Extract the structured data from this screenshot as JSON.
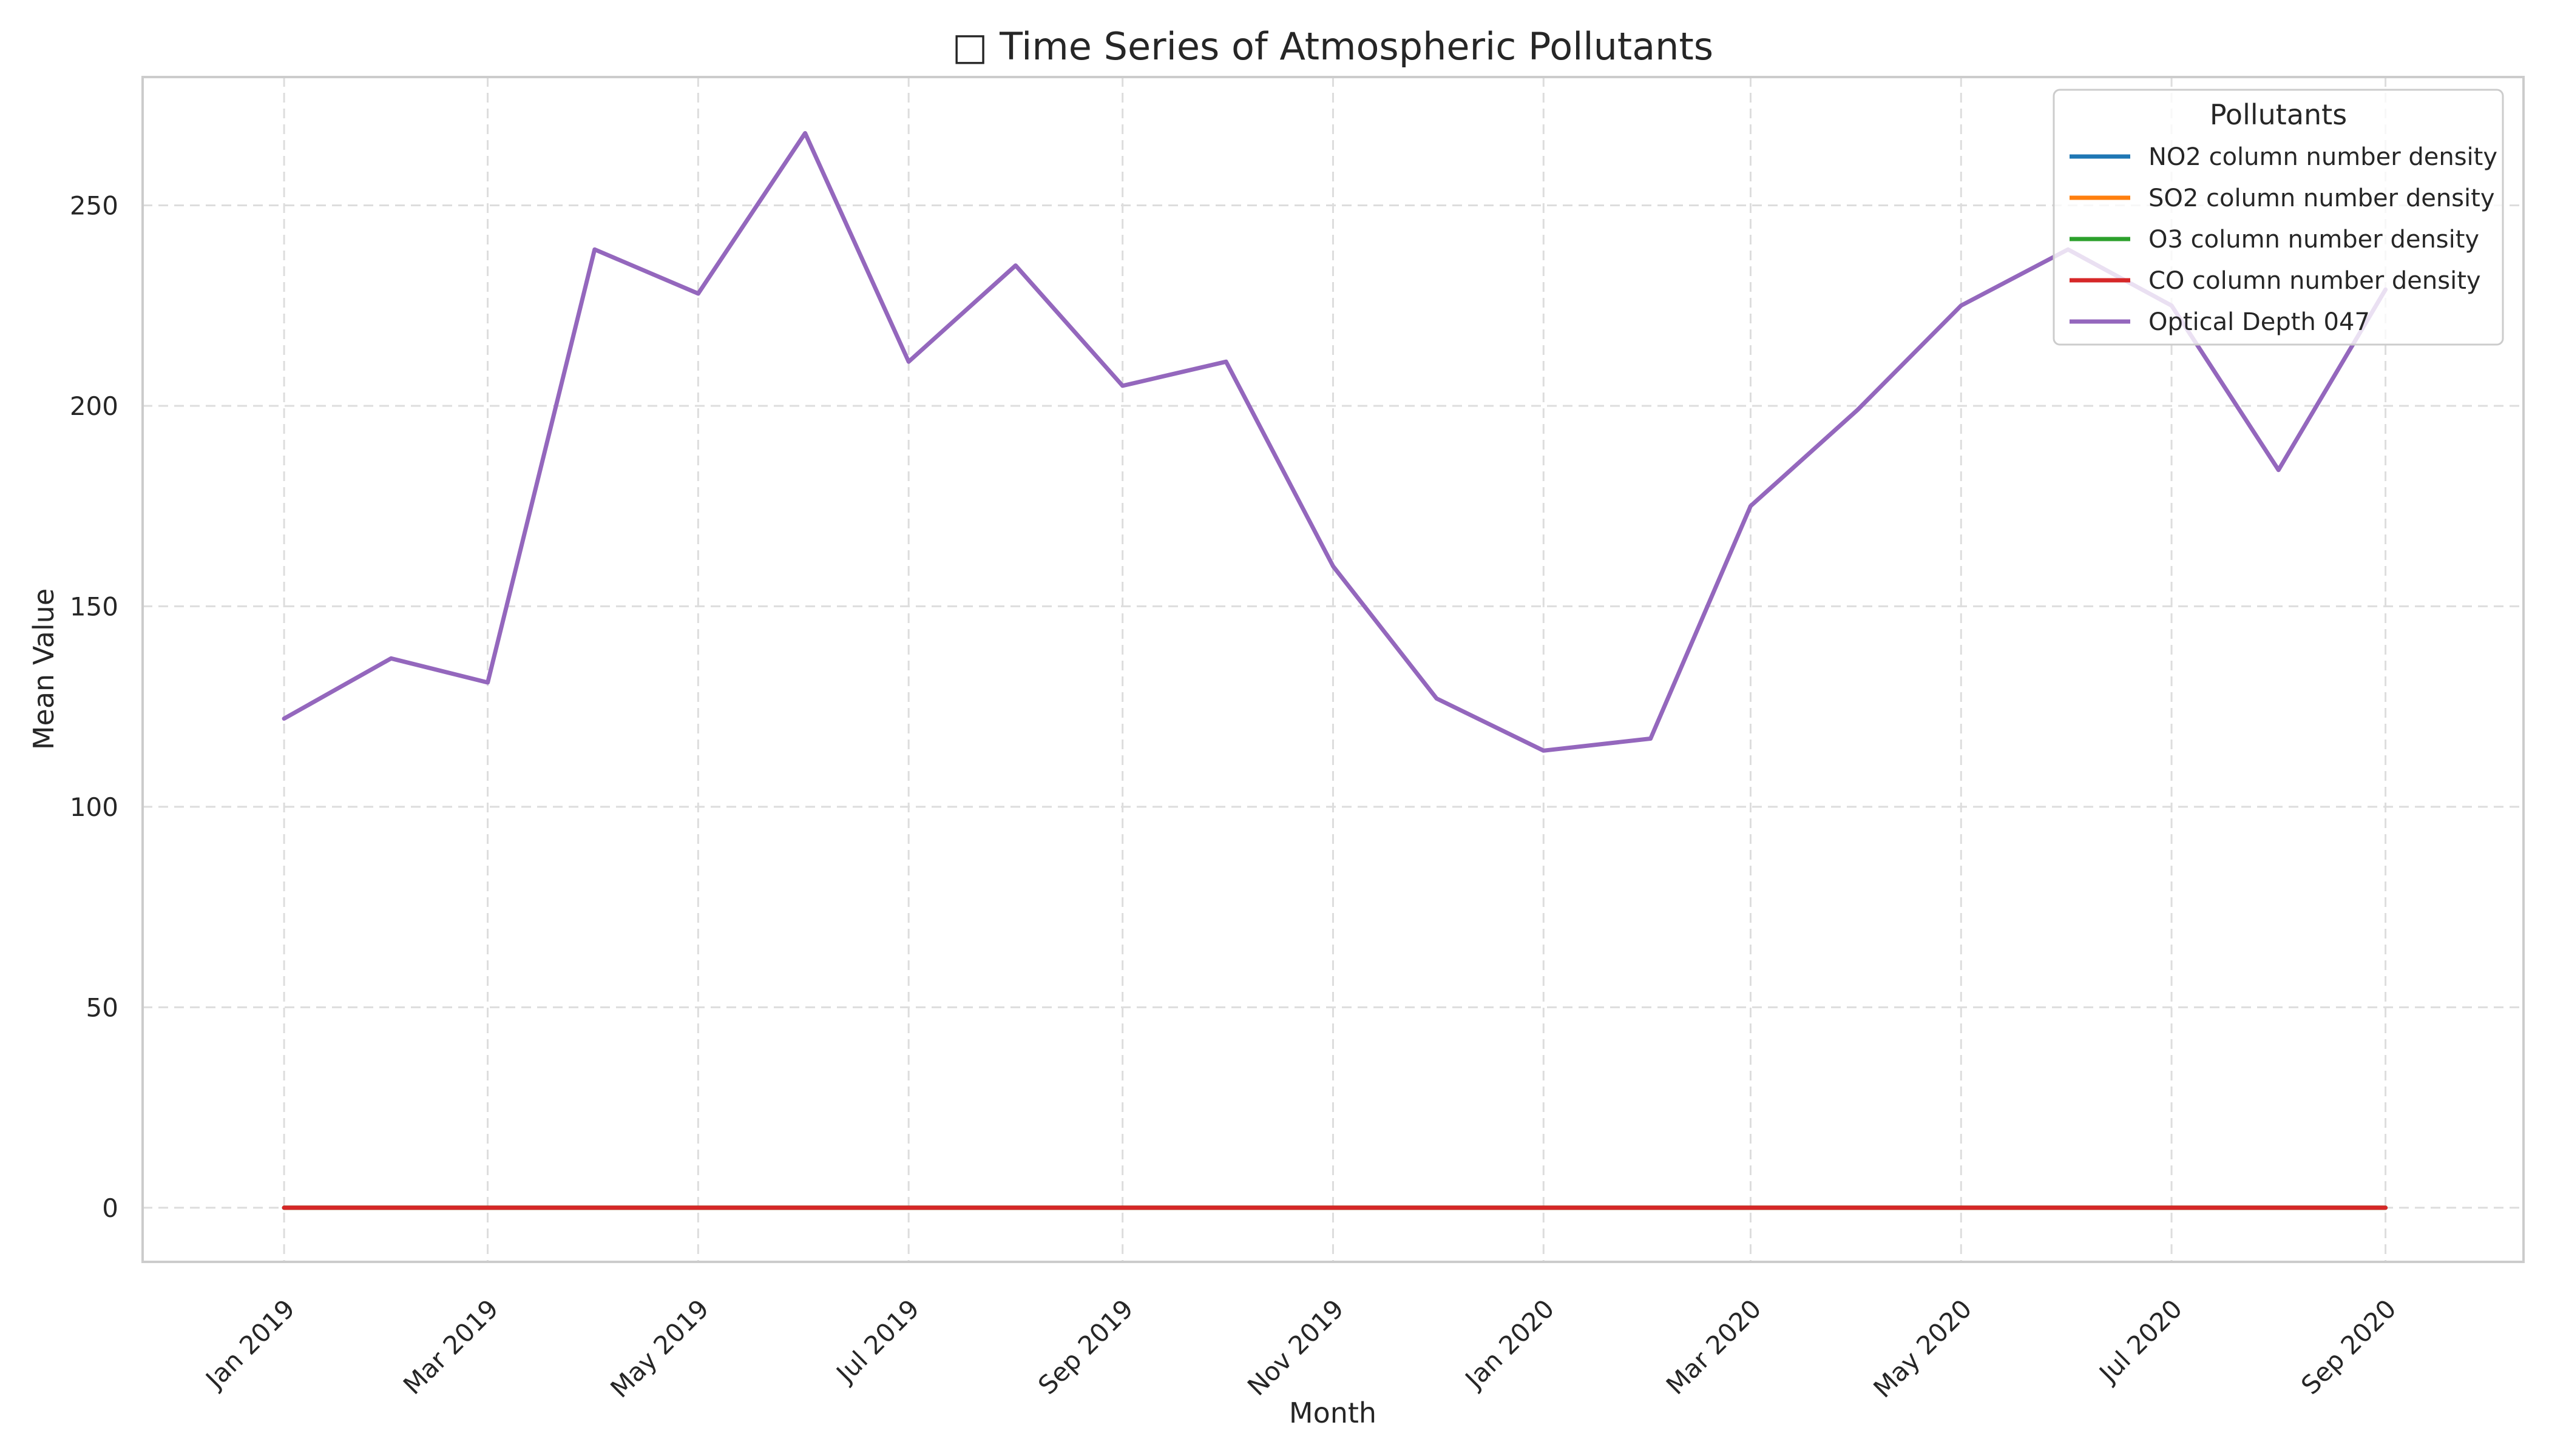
{
  "chart_data": {
    "type": "line",
    "title": "□ Time Series of Atmospheric Pollutants",
    "xlabel": "Month",
    "ylabel": "Mean Value",
    "ylim": [
      -13.5,
      282
    ],
    "xlim": [
      "2018-11-21",
      "2020-10-11"
    ],
    "grid": true,
    "legend_title": "Pollutants",
    "legend_position": "top-right",
    "x": [
      "2019-01-01",
      "2019-02-01",
      "2019-03-01",
      "2019-04-01",
      "2019-05-01",
      "2019-06-01",
      "2019-07-01",
      "2019-08-01",
      "2019-09-01",
      "2019-10-01",
      "2019-11-01",
      "2019-12-01",
      "2020-01-01",
      "2020-02-01",
      "2020-03-01",
      "2020-04-01",
      "2020-05-01",
      "2020-06-01",
      "2020-07-01",
      "2020-08-01",
      "2020-09-01"
    ],
    "x_ticks": [
      {
        "value": "2019-01-01",
        "label": "Jan 2019"
      },
      {
        "value": "2019-03-01",
        "label": "Mar 2019"
      },
      {
        "value": "2019-05-01",
        "label": "May 2019"
      },
      {
        "value": "2019-07-01",
        "label": "Jul 2019"
      },
      {
        "value": "2019-09-01",
        "label": "Sep 2019"
      },
      {
        "value": "2019-11-01",
        "label": "Nov 2019"
      },
      {
        "value": "2020-01-01",
        "label": "Jan 2020"
      },
      {
        "value": "2020-03-01",
        "label": "Mar 2020"
      },
      {
        "value": "2020-05-01",
        "label": "May 2020"
      },
      {
        "value": "2020-07-01",
        "label": "Jul 2020"
      },
      {
        "value": "2020-09-01",
        "label": "Sep 2020"
      }
    ],
    "y_ticks": [
      0,
      50,
      100,
      150,
      200,
      250
    ],
    "series": [
      {
        "name": "NO2 column number density",
        "color": "#1f77b4",
        "values": [
          0,
          0,
          0,
          0,
          0,
          0,
          0,
          0,
          0,
          0,
          0,
          0,
          0,
          0,
          0,
          0,
          0,
          0,
          0,
          0,
          0
        ]
      },
      {
        "name": "SO2 column number density",
        "color": "#ff7f0e",
        "values": [
          0,
          0,
          0,
          0,
          0,
          0,
          0,
          0,
          0,
          0,
          0,
          0,
          0,
          0,
          0,
          0,
          0,
          0,
          0,
          0,
          0
        ]
      },
      {
        "name": "O3 column number density",
        "color": "#2ca02c",
        "values": [
          0,
          0,
          0,
          0,
          0,
          0,
          0,
          0,
          0,
          0,
          0,
          0,
          0,
          0,
          0,
          0,
          0,
          0,
          0,
          0,
          0
        ]
      },
      {
        "name": "CO column number density",
        "color": "#d62728",
        "values": [
          0,
          0,
          0,
          0,
          0,
          0,
          0,
          0,
          0,
          0,
          0,
          0,
          0,
          0,
          0,
          0,
          0,
          0,
          0,
          0,
          0
        ]
      },
      {
        "name": "Optical Depth 047",
        "color": "#9467bd",
        "values": [
          122,
          137,
          131,
          239,
          228,
          268,
          211,
          235,
          205,
          211,
          160,
          127,
          114,
          117,
          175,
          199,
          225,
          239,
          225,
          184,
          229
        ]
      }
    ]
  }
}
